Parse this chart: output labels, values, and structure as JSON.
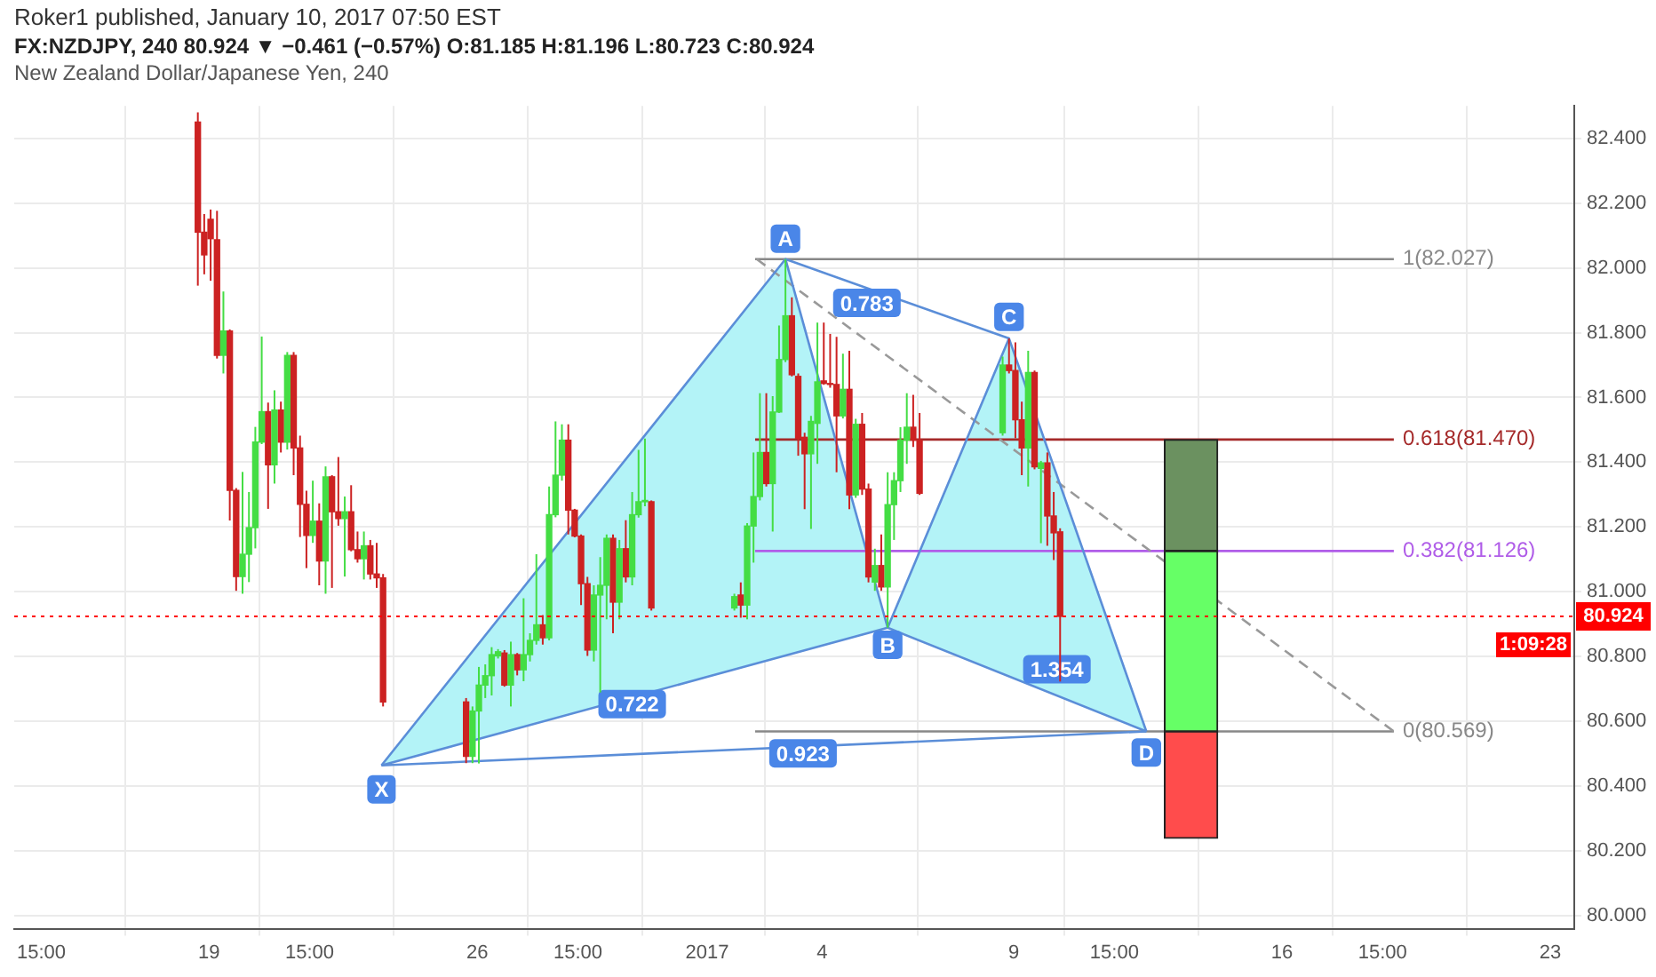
{
  "chart_data": {
    "type": "candlestick",
    "title": "FX:NZDJPY, 240  80.924 ▼ −0.461 (−0.57%) O:81.185 H:81.196 L:80.723 C:80.924",
    "subtitle": "New Zealand Dollar/Japanese Yen, 240",
    "annotations": [
      "Roker1 published, January 10, 2017 07:50 EST",
      "1:09:28",
      {
        "text": "X",
        "x": "2016-12-23T12:00",
        "y": 80.39
      },
      {
        "text": "A",
        "x": "2017-01-03T01:00",
        "y": 82.09
      },
      {
        "text": "B",
        "x": "2017-01-05T17:00",
        "y": 80.836
      },
      {
        "text": "C",
        "x": "2017-01-08T21:00",
        "y": 81.849
      },
      {
        "text": "D",
        "x": "2017-01-12T11:00",
        "y": 80.504
      },
      {
        "text": "0.783",
        "x": "2017-01-05T04:00",
        "y": 81.892
      },
      {
        "text": "0.722",
        "x": "2016-12-30T01:00",
        "y": 80.653
      },
      {
        "text": "0.923",
        "x": "2017-01-03T12:00",
        "y": 80.501
      },
      {
        "text": "1.354",
        "x": "2017-01-10T03:00",
        "y": 80.761
      }
    ],
    "series": [
      {
        "type": "area",
        "color": "#b3f3f7",
        "x": [
          "2016-12-23T12:00",
          "2017-01-03T01:00",
          "2017-01-05T17:00",
          "2016-12-23T12:00"
        ],
        "values": [
          80.464,
          82.027,
          80.889,
          80.464
        ]
      },
      {
        "type": "area",
        "color": "#b3f3f7",
        "x": [
          "2017-01-05T17:00",
          "2017-01-08T21:00",
          "2017-01-12T11:00",
          "2017-01-05T17:00"
        ],
        "values": [
          80.889,
          81.782,
          80.569,
          80.889
        ]
      },
      {
        "type": "line",
        "color": "#5b8ed8",
        "x": [
          "2016-12-23T12:00",
          "2017-01-03T01:00",
          "2017-01-05T17:00",
          "2017-01-08T21:00",
          "2017-01-12T11:00"
        ],
        "values": [
          80.464,
          82.027,
          80.889,
          81.782,
          80.569
        ]
      },
      {
        "type": "line",
        "color": "#5b8ed8",
        "x": [
          "2016-12-23T12:00",
          "2017-01-05T17:00",
          "2017-01-12T11:00"
        ],
        "values": [
          80.464,
          80.889,
          80.569
        ]
      },
      {
        "type": "line",
        "color": "#5b8ed8",
        "x": [
          "2016-12-23T12:00",
          "2017-01-12T11:00"
        ],
        "values": [
          80.464,
          80.569
        ]
      },
      {
        "type": "line",
        "color": "#5b8ed8",
        "x": [
          "2017-01-03T01:00",
          "2017-01-08T21:00"
        ],
        "values": [
          82.027,
          81.782
        ]
      },
      {
        "type": "line",
        "color": "#999999",
        "line_style": "dashed",
        "x": [
          "2017-01-02T07:00",
          "2017-01-18T22:00"
        ],
        "values": [
          82.027,
          80.569
        ]
      },
      {
        "type": "line",
        "name": "1(82.027)",
        "color": "#888888",
        "x": [
          "2017-01-02T06:00",
          "2017-01-18T22:00"
        ],
        "values": [
          82.027,
          82.027
        ]
      },
      {
        "type": "line",
        "name": "0.618(81.470)",
        "color": "#a52a2a",
        "x": [
          "2017-01-02T06:00",
          "2017-01-18T22:00"
        ],
        "values": [
          81.47,
          81.47
        ]
      },
      {
        "type": "line",
        "name": "0.382(81.126)",
        "color": "#b05de8",
        "x": [
          "2017-01-02T06:00",
          "2017-01-18T22:00"
        ],
        "values": [
          81.126,
          81.126
        ]
      },
      {
        "type": "line",
        "name": "0(80.569)",
        "color": "#888888",
        "x": [
          "2017-01-02T06:00",
          "2017-01-18T22:00"
        ],
        "values": [
          80.569,
          80.569
        ]
      },
      {
        "type": "bar",
        "color": "#6b9160",
        "x": [
          "2017-01-13T15:00"
        ],
        "base": [
          81.126
        ],
        "values": [
          0.344
        ]
      },
      {
        "type": "bar",
        "color": "#66ff66",
        "x": [
          "2017-01-13T15:00"
        ],
        "base": [
          80.569
        ],
        "values": [
          0.557
        ]
      },
      {
        "type": "bar",
        "color": "#ff4c4c",
        "x": [
          "2017-01-13T15:00"
        ],
        "base": [
          80.239
        ],
        "values": [
          0.33
        ]
      },
      {
        "color": "#44dd44",
        "x": [
          "2016-12-19T09:00",
          "2016-12-19T21:00",
          "2016-12-20T01:00",
          "2016-12-20T05:00",
          "2016-12-20T09:00",
          "2016-12-20T17:00",
          "2016-12-21T01:00",
          "2016-12-21T17:00",
          "2016-12-22T01:00",
          "2016-12-22T13:00",
          "2016-12-23T01:00",
          "2016-12-25T21:00",
          "2016-12-26T01:00",
          "2016-12-26T05:00",
          "2016-12-26T09:00",
          "2016-12-26T13:00",
          "2016-12-26T21:00",
          "2016-12-27T05:00",
          "2016-12-27T09:00",
          "2016-12-27T13:00",
          "2016-12-27T21:00",
          "2016-12-28T01:00",
          "2016-12-28T05:00",
          "2016-12-29T01:00",
          "2016-12-29T05:00",
          "2016-12-29T09:00",
          "2016-12-29T17:00",
          "2016-12-30T01:00",
          "2016-12-30T05:00",
          "2016-12-30T09:00",
          "2017-01-01T17:00",
          "2017-01-02T01:00",
          "2017-01-02T05:00",
          "2017-01-02T09:00",
          "2017-01-02T17:00",
          "2017-01-02T21:00",
          "2017-01-03T01:00",
          "2017-01-03T17:00",
          "2017-01-03T21:00",
          "2017-01-04T13:00",
          "2017-01-04T21:00",
          "2017-01-05T09:00",
          "2017-01-05T17:00",
          "2017-01-05T21:00",
          "2017-01-06T01:00",
          "2017-01-06T05:00",
          "2017-01-08T17:00",
          "2017-01-09T09:00",
          "2017-01-09T17:00"
        ],
        "ohlc": [
          [
            81.73,
            81.927,
            81.674,
            81.805
          ],
          [
            81.047,
            81.37,
            80.994,
            81.116
          ],
          [
            81.116,
            81.308,
            81.03,
            81.198
          ],
          [
            81.198,
            81.509,
            81.134,
            81.462
          ],
          [
            81.462,
            81.788,
            81.456,
            81.556
          ],
          [
            81.392,
            81.622,
            81.334,
            81.561
          ],
          [
            81.462,
            81.74,
            81.439,
            81.73
          ],
          [
            81.174,
            81.343,
            81.151,
            81.218
          ],
          [
            81.095,
            81.387,
            80.994,
            81.355
          ],
          [
            81.226,
            81.294,
            81.047,
            81.247
          ],
          [
            81.102,
            81.186,
            81.038,
            81.142
          ],
          [
            80.492,
            80.646,
            80.471,
            80.632
          ],
          [
            80.632,
            80.768,
            80.47,
            80.712
          ],
          [
            80.712,
            80.776,
            80.672,
            80.741
          ],
          [
            80.741,
            80.829,
            80.68,
            80.806
          ],
          [
            80.802,
            80.823,
            80.794,
            80.815
          ],
          [
            80.712,
            80.846,
            80.646,
            80.806
          ],
          [
            80.759,
            80.98,
            80.724,
            80.806
          ],
          [
            80.806,
            80.872,
            80.785,
            80.85
          ],
          [
            80.85,
            81.116,
            80.837,
            80.898
          ],
          [
            80.858,
            81.325,
            80.85,
            81.238
          ],
          [
            81.238,
            81.526,
            81.23,
            81.36
          ],
          [
            81.36,
            81.517,
            81.343,
            81.468
          ],
          [
            80.82,
            81.02,
            80.785,
            80.99
          ],
          [
            80.99,
            81.107,
            80.689,
            81.02
          ],
          [
            81.02,
            81.177,
            80.915,
            81.165
          ],
          [
            80.968,
            81.16,
            80.915,
            81.133
          ],
          [
            81.046,
            81.308,
            81.02,
            81.238
          ],
          [
            81.238,
            81.438,
            81.229,
            81.278
          ],
          [
            81.278,
            81.473,
            81.264,
            81.282
          ],
          [
            80.95,
            80.994,
            80.942,
            80.985
          ],
          [
            80.959,
            81.212,
            80.915,
            81.203
          ],
          [
            81.203,
            81.43,
            81.09,
            81.294
          ],
          [
            81.294,
            81.613,
            81.282,
            81.43
          ],
          [
            81.334,
            81.604,
            81.186,
            81.555
          ],
          [
            81.555,
            81.822,
            81.552,
            81.717
          ],
          [
            81.717,
            82.027,
            81.709,
            81.852
          ],
          [
            81.426,
            81.543,
            81.194,
            81.526
          ],
          [
            81.52,
            81.831,
            81.395,
            81.648
          ],
          [
            81.543,
            81.735,
            81.535,
            81.625
          ],
          [
            81.299,
            81.534,
            81.29,
            81.517
          ],
          [
            81.03,
            81.133,
            81.003,
            81.081
          ],
          [
            81.015,
            81.369,
            80.889,
            81.269
          ],
          [
            81.269,
            81.369,
            81.16,
            81.343
          ],
          [
            81.343,
            81.508,
            81.308,
            81.468
          ],
          [
            81.468,
            81.613,
            81.395,
            81.508
          ],
          [
            81.491,
            81.726,
            81.482,
            81.7
          ],
          [
            81.444,
            81.744,
            81.325,
            81.677
          ],
          [
            81.381,
            81.404,
            81.15,
            81.398
          ]
        ]
      },
      {
        "color": "#cc2222",
        "x": [
          "2016-12-18T17:00",
          "2016-12-18T21:00",
          "2016-12-19T01:00",
          "2016-12-19T05:00",
          "2016-12-19T13:00",
          "2016-12-19T17:00",
          "2016-12-20T13:00",
          "2016-12-20T21:00",
          "2016-12-21T05:00",
          "2016-12-21T09:00",
          "2016-12-21T13:00",
          "2016-12-21T21:00",
          "2016-12-22T05:00",
          "2016-12-22T09:00",
          "2016-12-22T17:00",
          "2016-12-22T21:00",
          "2016-12-23T05:00",
          "2016-12-23T09:00",
          "2016-12-23T13:00",
          "2016-12-25T17:00",
          "2016-12-26T17:00",
          "2016-12-27T01:00",
          "2016-12-27T17:00",
          "2016-12-28T09:00",
          "2016-12-28T13:00",
          "2016-12-28T17:00",
          "2016-12-28T21:00",
          "2016-12-29T13:00",
          "2016-12-29T21:00",
          "2016-12-30T13:00",
          "2017-01-01T21:00",
          "2017-01-02T13:00",
          "2017-01-03T05:00",
          "2017-01-03T09:00",
          "2017-01-03T13:00",
          "2017-01-04T01:00",
          "2017-01-04T05:00",
          "2017-01-04T09:00",
          "2017-01-04T17:00",
          "2017-01-05T01:00",
          "2017-01-05T05:00",
          "2017-01-05T13:00",
          "2017-01-06T09:00",
          "2017-01-06T13:00",
          "2017-01-08T21:00",
          "2017-01-09T01:00",
          "2017-01-09T05:00",
          "2017-01-09T13:00",
          "2017-01-09T21:00",
          "2017-01-10T01:00",
          "2017-01-10T05:00"
        ],
        "ohlc": [
          [
            82.45,
            82.48,
            81.945,
            82.11
          ],
          [
            82.11,
            82.166,
            81.98,
            82.04
          ],
          [
            82.15,
            82.18,
            81.96,
            82.09
          ],
          [
            82.087,
            82.176,
            81.72,
            81.73
          ],
          [
            81.805,
            81.81,
            81.22,
            81.313
          ],
          [
            81.313,
            81.32,
            81.003,
            81.047
          ],
          [
            81.556,
            81.584,
            81.256,
            81.392
          ],
          [
            81.561,
            81.587,
            81.43,
            81.462
          ],
          [
            81.73,
            81.74,
            81.36,
            81.444
          ],
          [
            81.444,
            81.482,
            81.169,
            81.27
          ],
          [
            81.27,
            81.312,
            81.073,
            81.174
          ],
          [
            81.218,
            81.273,
            81.02,
            81.095
          ],
          [
            81.355,
            81.36,
            81.012,
            81.247
          ],
          [
            81.247,
            81.416,
            81.204,
            81.226
          ],
          [
            81.247,
            81.329,
            81.125,
            81.13
          ],
          [
            81.13,
            81.186,
            81.09,
            81.102
          ],
          [
            81.142,
            81.16,
            81.038,
            81.055
          ],
          [
            81.055,
            81.151,
            81.012,
            81.043
          ],
          [
            81.043,
            81.055,
            80.646,
            80.66
          ],
          [
            80.66,
            80.672,
            80.471,
            80.492
          ],
          [
            80.811,
            80.82,
            80.707,
            80.712
          ],
          [
            80.806,
            80.811,
            80.742,
            80.759
          ],
          [
            80.898,
            80.928,
            80.837,
            80.858
          ],
          [
            81.468,
            81.517,
            81.177,
            81.252
          ],
          [
            81.252,
            81.256,
            81.168,
            81.172
          ],
          [
            81.172,
            81.177,
            80.959,
            81.025
          ],
          [
            81.025,
            81.046,
            80.802,
            80.82
          ],
          [
            81.165,
            81.177,
            80.872,
            80.968
          ],
          [
            81.133,
            81.221,
            81.029,
            81.046
          ],
          [
            81.278,
            81.282,
            80.942,
            80.95
          ],
          [
            80.99,
            81.029,
            80.92,
            80.959
          ],
          [
            81.43,
            81.613,
            81.325,
            81.334
          ],
          [
            81.852,
            81.909,
            81.665,
            81.67
          ],
          [
            81.665,
            81.674,
            81.42,
            81.474
          ],
          [
            81.477,
            81.491,
            81.255,
            81.426
          ],
          [
            81.651,
            81.831,
            81.639,
            81.643
          ],
          [
            81.643,
            81.796,
            81.63,
            81.64
          ],
          [
            81.64,
            81.787,
            81.369,
            81.543
          ],
          [
            81.625,
            81.744,
            81.255,
            81.299
          ],
          [
            81.517,
            81.552,
            81.299,
            81.317
          ],
          [
            81.317,
            81.334,
            81.029,
            81.046
          ],
          [
            81.081,
            81.177,
            81.003,
            81.015
          ],
          [
            81.508,
            81.608,
            81.447,
            81.468
          ],
          [
            81.468,
            81.552,
            81.299,
            81.304
          ],
          [
            81.7,
            81.782,
            81.674,
            81.683
          ],
          [
            81.683,
            81.77,
            81.474,
            81.531
          ],
          [
            81.531,
            81.587,
            81.36,
            81.444
          ],
          [
            81.677,
            81.683,
            81.378,
            81.386
          ],
          [
            81.398,
            81.43,
            81.142,
            81.234
          ],
          [
            81.234,
            81.308,
            81.098,
            81.182
          ],
          [
            81.185,
            81.196,
            80.723,
            80.924
          ]
        ]
      }
    ],
    "ref_lines": [
      {
        "axis": "y",
        "value": 80.924,
        "label": "80.924",
        "color": "#ff0000",
        "line_style": "dotted"
      }
    ],
    "xlim": [
      "2016-12-13T22:00",
      "2017-01-23T15:00"
    ],
    "xticks": [
      {
        "value": "2016-12-14T15:00",
        "label": "15:00"
      },
      {
        "value": "2016-12-19",
        "label": "19"
      },
      {
        "value": "2016-12-21T15:00",
        "label": "15:00"
      },
      {
        "value": "2016-12-26",
        "label": "26"
      },
      {
        "value": "2016-12-28T15:00",
        "label": "15:00"
      },
      {
        "value": "2017-01-01",
        "label": "2017"
      },
      {
        "value": "2017-01-04",
        "label": "4"
      },
      {
        "value": "2017-01-09",
        "label": "9"
      },
      {
        "value": "2017-01-11T15:00",
        "label": "15:00"
      },
      {
        "value": "2017-01-16",
        "label": "16"
      },
      {
        "value": "2017-01-18T15:00",
        "label": "15:00"
      },
      {
        "value": "2017-01-23",
        "label": "23"
      }
    ],
    "ylim": [
      79.96,
      82.5
    ],
    "yticks": [
      {
        "value": 80,
        "label": "80.000"
      },
      {
        "value": 80.2,
        "label": "80.200"
      },
      {
        "value": 80.4,
        "label": "80.400"
      },
      {
        "value": 80.6,
        "label": "80.600"
      },
      {
        "value": 80.8,
        "label": "80.800"
      },
      {
        "value": 81,
        "label": "81.000"
      },
      {
        "value": 81.2,
        "label": "81.200"
      },
      {
        "value": 81.4,
        "label": "81.400"
      },
      {
        "value": 81.6,
        "label": "81.600"
      },
      {
        "value": 81.8,
        "label": "81.800"
      },
      {
        "value": 82,
        "label": "82.000"
      },
      {
        "value": 82.2,
        "label": "82.200"
      },
      {
        "value": 82.4,
        "label": "82.400"
      }
    ],
    "grid": true,
    "legend": false,
    "marker": "none"
  }
}
